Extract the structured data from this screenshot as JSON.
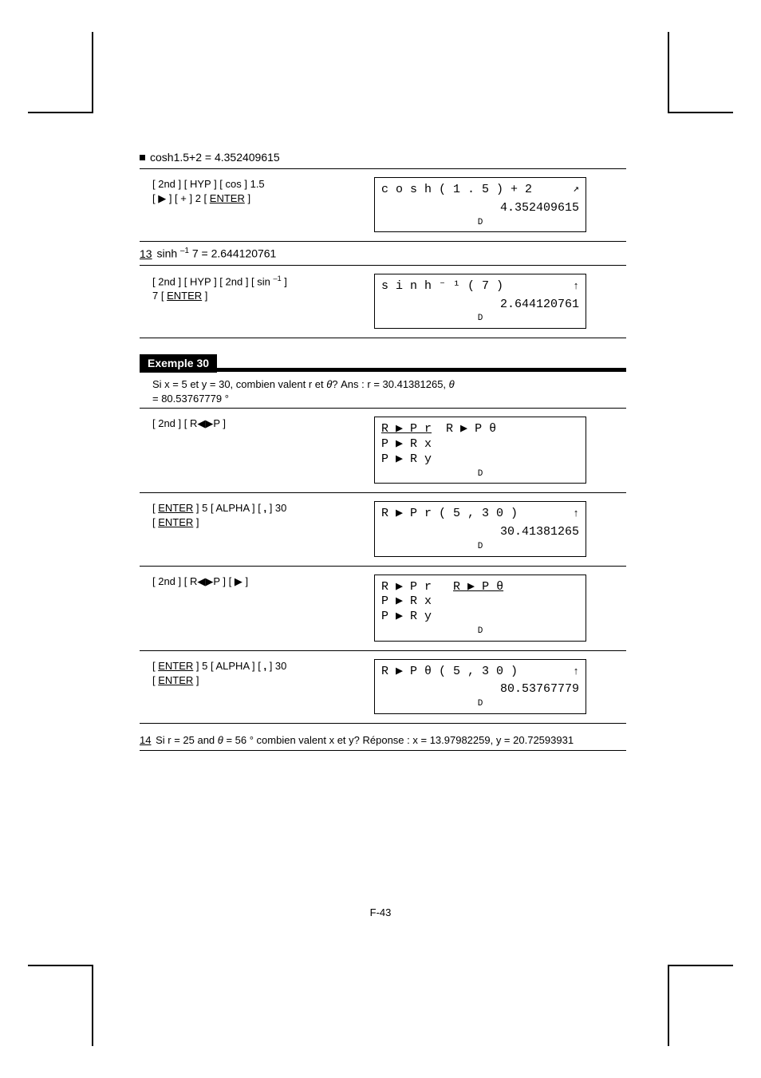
{
  "page_number": "F-43",
  "block1": {
    "heading": "cosh1.5+2 = 4.352409615",
    "keys_html": "[ 2nd ] [ HYP ] [ cos ] 1.5<br>[ ▶ ] [ + ] 2 [ <span class='underlined'>ENTER</span> ]",
    "lcd_expr": "c o s h ( 1 . 5 ) + 2",
    "lcd_arrow": "upright",
    "lcd_result": "4.352409615"
  },
  "block2": {
    "heading_html": "<span class='num-prefix'>13</span> sinh <sup>–1</sup> 7 = 2.644120761",
    "keys_html": "[ 2nd ] [ HYP ] [ 2nd ] [ sin <sup>–1</sup> ]<br>7 [ <span class='underlined'>ENTER</span> ]",
    "lcd_expr": "s i n h ⁻ ¹ ( 7 )",
    "lcd_arrow": "up",
    "lcd_result": "2.644120761"
  },
  "example": {
    "label": "Exemple 30",
    "text_html": "Si x = 5 et y = 30, combien valent r et <span class='ri'>θ</span>? Ans : r = 30.41381265, <span class='ri'>θ</span><br>= 80.53767779 °"
  },
  "block3": {
    "keys_html": "[ 2nd ] [ R◀▶P ]",
    "lcd_line1_html": "<span class='menu-sel'>R ▶ P r</span>  R ▶ P θ",
    "lcd_line2": "P ▶ R x",
    "lcd_line3": "P ▶ R y"
  },
  "block4": {
    "keys_html": "[ <span class='underlined'>ENTER</span> ] 5 [ ALPHA ] [ <b>,</b> ] 30<br>[ <span class='underlined'>ENTER</span> ]",
    "lcd_expr": "R ▶ P r ( 5 , 3 0 )",
    "lcd_arrow": "up",
    "lcd_result": "30.41381265"
  },
  "block5": {
    "keys_html": "[ 2nd ] [ R◀▶P ] [ ▶ ]",
    "lcd_line1_html": "R ▶ P r   <span class='menu-sel'>R ▶ P θ</span>",
    "lcd_line2": "P ▶ R x",
    "lcd_line3": "P ▶ R y"
  },
  "block6": {
    "keys_html": "[ <span class='underlined'>ENTER</span> ] 5 [ ALPHA ] [ <b>,</b> ] 30<br>[ <span class='underlined'>ENTER</span> ]",
    "lcd_expr": "R ▶ P θ ( 5 , 3 0 )",
    "lcd_arrow": "up",
    "lcd_result": "80.53767779"
  },
  "footer": {
    "text_html": "<span class='num-prefix'>14</span> Si  r = 25 and <span class='ri'>θ</span> = 56 ° combien valent x  et y? Réponse : x = 13.97982259, y  = 20.72593931"
  }
}
